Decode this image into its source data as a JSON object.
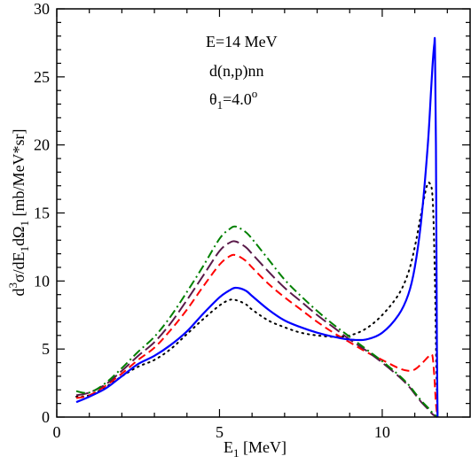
{
  "chart_data": {
    "type": "line",
    "xlabel": {
      "main": "E",
      "sub": "1",
      "rest": " [MeV]"
    },
    "ylabel": {
      "p1": "d",
      "sup1": "3",
      "p2": "σ/dE",
      "sub1": "1",
      "p3": "dΩ",
      "sub2": "1",
      "p4": " [mb/MeV*sr]"
    },
    "xlim": [
      0,
      12.7
    ],
    "ylim": [
      0,
      30
    ],
    "xticks": [
      0,
      5,
      10
    ],
    "yticks": [
      0,
      5,
      10,
      15,
      20,
      25,
      30
    ],
    "xtick_labels": [
      "0",
      "5",
      "10"
    ],
    "ytick_labels": [
      "0",
      "5",
      "10",
      "15",
      "20",
      "25",
      "30"
    ],
    "minor_x_step": 1,
    "minor_y_step": 1,
    "grid": false,
    "legend": "none",
    "annotations": {
      "line1": "E=14 MeV",
      "line2": "d(n,p)nn",
      "line3": {
        "theta": "θ",
        "sub": "1",
        "eq": "=4.0",
        "sup": "o"
      }
    },
    "series": [
      {
        "color": "#0000ff",
        "style": "solid",
        "x": [
          0.6,
          1.0,
          1.5,
          2.0,
          2.5,
          3.0,
          3.5,
          4.0,
          4.5,
          5.0,
          5.3,
          5.5,
          5.8,
          6.0,
          6.5,
          7.0,
          7.5,
          8.0,
          8.5,
          9.0,
          9.5,
          10.0,
          10.5,
          10.8,
          11.0,
          11.2,
          11.4,
          11.5,
          11.55,
          11.6,
          11.62,
          11.65,
          11.68,
          11.7
        ],
        "y": [
          1.1,
          1.5,
          2.1,
          3.0,
          3.9,
          4.5,
          5.3,
          6.3,
          7.6,
          8.8,
          9.3,
          9.5,
          9.3,
          8.9,
          7.9,
          7.1,
          6.6,
          6.2,
          5.9,
          5.7,
          5.7,
          6.2,
          7.5,
          9.0,
          11.0,
          14.5,
          20.0,
          24.0,
          26.0,
          27.4,
          27.2,
          20.0,
          5.0,
          0.0
        ]
      },
      {
        "color": "#000000",
        "style": "dotted",
        "x": [
          0.6,
          1.0,
          1.5,
          2.0,
          2.5,
          3.0,
          3.5,
          4.0,
          4.5,
          5.0,
          5.3,
          5.5,
          5.8,
          6.0,
          6.5,
          7.0,
          7.5,
          8.0,
          8.5,
          9.0,
          9.5,
          10.0,
          10.5,
          10.8,
          11.0,
          11.2,
          11.35,
          11.45,
          11.55,
          11.62,
          11.66,
          11.7
        ],
        "y": [
          1.5,
          1.6,
          2.2,
          3.0,
          3.7,
          4.2,
          5.0,
          6.1,
          7.2,
          8.2,
          8.6,
          8.6,
          8.3,
          7.9,
          7.1,
          6.6,
          6.2,
          6.0,
          5.9,
          6.0,
          6.5,
          7.5,
          9.0,
          10.6,
          12.5,
          15.0,
          16.8,
          17.2,
          16.0,
          10.0,
          4.0,
          0.0
        ]
      },
      {
        "color": "#ff0000",
        "style": "dashed",
        "x": [
          0.6,
          1.0,
          1.5,
          2.0,
          2.5,
          3.0,
          3.5,
          4.0,
          4.5,
          5.0,
          5.3,
          5.5,
          5.8,
          6.0,
          6.5,
          7.0,
          7.5,
          8.0,
          8.5,
          9.0,
          9.5,
          10.0,
          10.5,
          10.8,
          11.0,
          11.2,
          11.4,
          11.5,
          11.55,
          11.6,
          11.65,
          11.7
        ],
        "y": [
          1.4,
          1.6,
          2.3,
          3.2,
          4.2,
          5.1,
          6.4,
          7.9,
          9.6,
          11.2,
          11.8,
          11.9,
          11.5,
          11.0,
          9.8,
          8.8,
          7.9,
          7.0,
          6.2,
          5.5,
          4.8,
          4.2,
          3.6,
          3.4,
          3.5,
          3.9,
          4.4,
          4.6,
          4.4,
          3.0,
          1.0,
          0.0
        ]
      },
      {
        "color": "#5a1a4a",
        "style": "longdash",
        "x": [
          0.6,
          1.0,
          1.5,
          2.0,
          2.5,
          3.0,
          3.5,
          4.0,
          4.5,
          5.0,
          5.3,
          5.5,
          5.8,
          6.0,
          6.5,
          7.0,
          7.5,
          8.0,
          8.5,
          9.0,
          9.5,
          10.0,
          10.5,
          10.8,
          11.0,
          11.2,
          11.4,
          11.55,
          11.7
        ],
        "y": [
          1.6,
          1.8,
          2.4,
          3.4,
          4.5,
          5.5,
          6.9,
          8.6,
          10.4,
          12.2,
          12.8,
          12.9,
          12.5,
          12.0,
          10.7,
          9.5,
          8.5,
          7.5,
          6.6,
          5.7,
          4.9,
          4.0,
          3.0,
          2.3,
          1.7,
          1.1,
          0.6,
          0.2,
          0.0
        ]
      },
      {
        "color": "#008000",
        "style": "dashdot",
        "x": [
          0.6,
          1.0,
          1.5,
          2.0,
          2.5,
          3.0,
          3.5,
          4.0,
          4.5,
          5.0,
          5.3,
          5.5,
          5.8,
          6.0,
          6.5,
          7.0,
          7.5,
          8.0,
          8.5,
          9.0,
          9.5,
          10.0,
          10.5,
          10.8,
          11.0,
          11.2,
          11.4,
          11.55,
          11.7
        ],
        "y": [
          1.9,
          1.8,
          2.5,
          3.6,
          4.8,
          5.9,
          7.4,
          9.2,
          11.1,
          13.1,
          13.8,
          14.0,
          13.6,
          13.1,
          11.6,
          10.1,
          8.9,
          7.8,
          6.8,
          5.9,
          5.0,
          4.1,
          3.1,
          2.4,
          1.8,
          1.2,
          0.7,
          0.3,
          0.0
        ]
      }
    ]
  }
}
